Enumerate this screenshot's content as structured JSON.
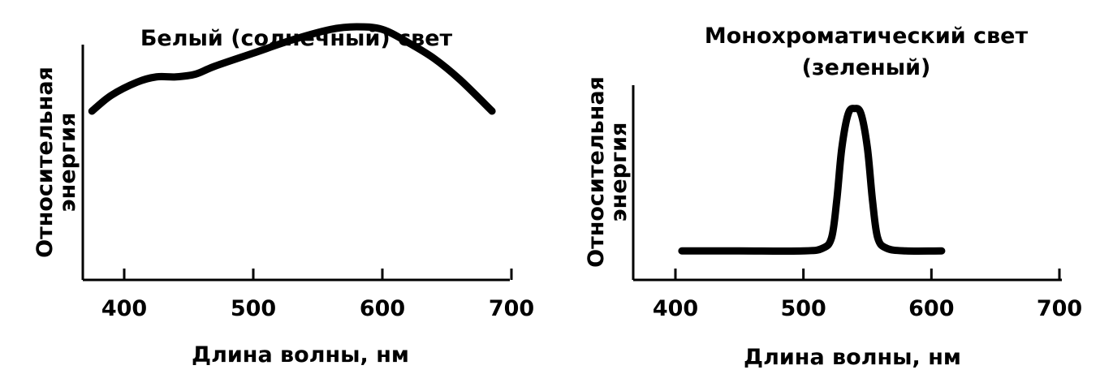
{
  "chart_data": [
    {
      "type": "line",
      "title": "Белый (солнечный) свет",
      "xlabel": "Длина волны, нм",
      "ylabel": [
        "Относительная",
        "энергия"
      ],
      "xlim": [
        370,
        700
      ],
      "ylim": [
        0,
        1
      ],
      "xticks": [
        400,
        500,
        600,
        700
      ],
      "grid": false,
      "series": [
        {
          "x": [
            375,
            390,
            410,
            425,
            440,
            455,
            470,
            500,
            530,
            560,
            580,
            600,
            620,
            640,
            660,
            685
          ],
          "values": [
            0.64,
            0.7,
            0.75,
            0.77,
            0.77,
            0.78,
            0.81,
            0.86,
            0.91,
            0.95,
            0.96,
            0.95,
            0.9,
            0.84,
            0.76,
            0.64
          ]
        }
      ]
    },
    {
      "type": "line",
      "title": [
        "Монохроматический свет",
        "(зеленый)"
      ],
      "xlabel": "Длина волны, нм",
      "ylabel": [
        "Относительная",
        "энергия"
      ],
      "xlim": [
        370,
        700
      ],
      "ylim": [
        0,
        1
      ],
      "xticks": [
        400,
        500,
        600,
        700
      ],
      "grid": false,
      "series": [
        {
          "x": [
            405,
            450,
            500,
            515,
            522,
            526,
            530,
            535,
            540,
            545,
            550,
            554,
            558,
            565,
            580,
            608
          ],
          "values": [
            0.11,
            0.11,
            0.11,
            0.12,
            0.16,
            0.3,
            0.5,
            0.63,
            0.65,
            0.63,
            0.5,
            0.3,
            0.16,
            0.12,
            0.11,
            0.11
          ]
        }
      ]
    }
  ]
}
